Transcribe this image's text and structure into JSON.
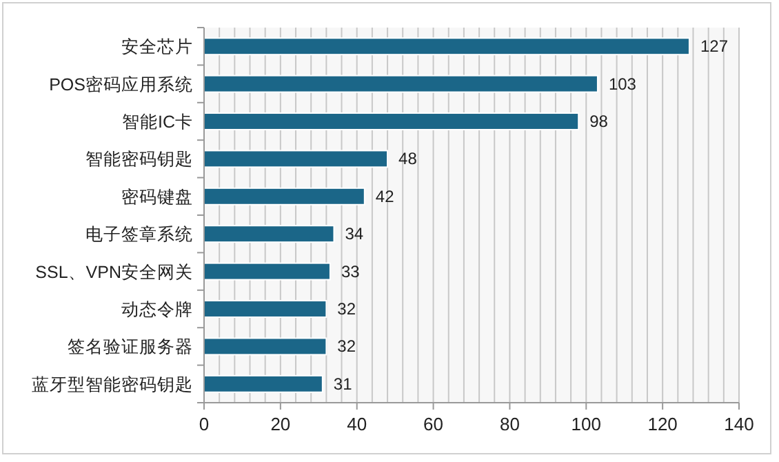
{
  "chart_data": {
    "type": "bar",
    "orientation": "horizontal",
    "categories": [
      "安全芯片",
      "POS密码应用系统",
      "智能IC卡",
      "智能密码钥匙",
      "密码键盘",
      "电子签章系统",
      "SSL、VPN安全网关",
      "动态令牌",
      "签名验证服务器",
      "蓝牙型智能密码钥匙"
    ],
    "series": [
      {
        "color": "#1b6688",
        "values": [
          127,
          103,
          98,
          48,
          42,
          34,
          33,
          32,
          32,
          31
        ]
      }
    ],
    "data_labels": true,
    "xlim": [
      0,
      140
    ],
    "xticks": [
      0,
      {
        "value": 4,
        "label": null
      },
      {
        "value": 8,
        "label": null
      },
      {
        "value": 12,
        "label": null
      },
      {
        "value": 16,
        "label": null
      },
      20,
      {
        "value": 24,
        "label": null
      },
      {
        "value": 28,
        "label": null
      },
      {
        "value": 32,
        "label": null
      },
      {
        "value": 36,
        "label": null
      },
      40,
      {
        "value": 44,
        "label": null
      },
      {
        "value": 48,
        "label": null
      },
      {
        "value": 52,
        "label": null
      },
      {
        "value": 56,
        "label": null
      },
      60,
      {
        "value": 64,
        "label": null
      },
      {
        "value": 68,
        "label": null
      },
      {
        "value": 72,
        "label": null
      },
      {
        "value": 76,
        "label": null
      },
      80,
      {
        "value": 84,
        "label": null
      },
      {
        "value": 88,
        "label": null
      },
      {
        "value": 92,
        "label": null
      },
      {
        "value": 96,
        "label": null
      },
      100,
      {
        "value": 104,
        "label": null
      },
      {
        "value": 108,
        "label": null
      },
      {
        "value": 112,
        "label": null
      },
      {
        "value": 116,
        "label": null
      },
      120,
      {
        "value": 124,
        "label": null
      },
      {
        "value": 128,
        "label": null
      },
      {
        "value": 132,
        "label": null
      },
      {
        "value": 136,
        "label": null
      },
      140
    ],
    "grid": "x"
  }
}
